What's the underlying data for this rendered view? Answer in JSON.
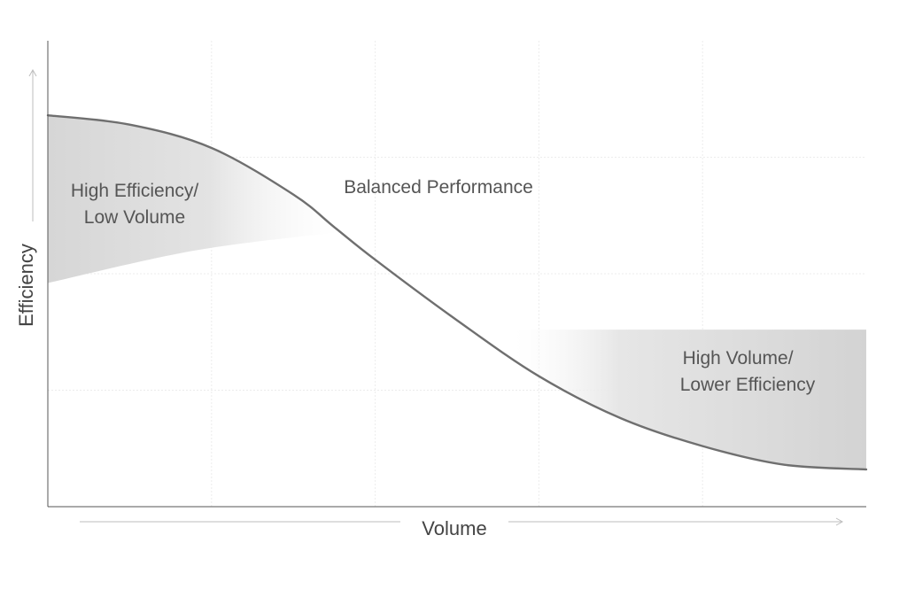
{
  "chart_data": {
    "type": "area",
    "title": "",
    "xlabel": "Volume",
    "ylabel": "Efficiency",
    "xlim": [
      0,
      1
    ],
    "ylim": [
      0,
      1
    ],
    "grid": true,
    "x_grid_lines": [
      0.2,
      0.4,
      0.6,
      0.8
    ],
    "y_grid_lines": [
      0.25,
      0.5,
      0.75
    ],
    "series": [
      {
        "values_x": [
          0,
          0.1,
          0.2,
          0.3,
          0.35,
          0.4,
          0.5,
          0.6,
          0.7,
          0.8,
          0.9,
          1.0
        ],
        "values_y": [
          0.84,
          0.82,
          0.77,
          0.67,
          0.6,
          0.53,
          0.4,
          0.28,
          0.19,
          0.13,
          0.09,
          0.08
        ]
      }
    ],
    "bands": [
      {
        "label_lines": [
          "High Efficiency/",
          "Low Volume"
        ],
        "x_range": [
          0,
          0.36
        ],
        "lower_boundary_y": [
          0.48,
          0.55,
          0.59
        ]
      },
      {
        "label_lines": [
          "High Volume/",
          "Lower Efficiency"
        ],
        "x_range": [
          0.57,
          1.0
        ],
        "upper_boundary_y": [
          0.38,
          0.38
        ]
      }
    ],
    "annotations": [
      {
        "text": "Balanced Performance",
        "x": 0.47,
        "y": 0.68
      }
    ]
  }
}
